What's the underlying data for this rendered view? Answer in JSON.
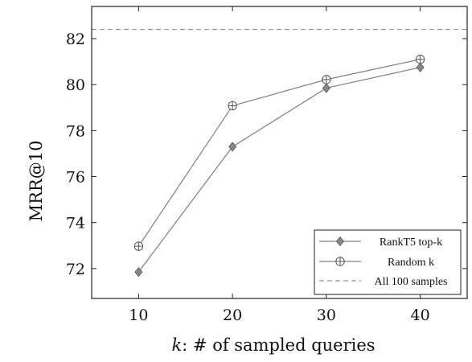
{
  "chart_data": {
    "type": "line",
    "xlabel_var": "k",
    "xlabel_rest": ": # of sampled queries",
    "ylabel": "MRR@10",
    "x": [
      10,
      20,
      30,
      40
    ],
    "xlim": [
      5,
      45
    ],
    "ylim": [
      70.7,
      83.4
    ],
    "xticks": [
      10,
      20,
      30,
      40
    ],
    "yticks": [
      72,
      74,
      76,
      78,
      80,
      82
    ],
    "grid": false,
    "legend_position": "bottom-right",
    "series": [
      {
        "name": "RankT5 top-k",
        "values": [
          71.85,
          77.3,
          79.85,
          80.75
        ],
        "marker": "diamond",
        "color": "#808080"
      },
      {
        "name": "Random k",
        "values": [
          72.97,
          79.08,
          80.22,
          81.1
        ],
        "marker": "circle-plus",
        "color": "#808080"
      }
    ],
    "reference_line": {
      "name": "All 100 samples",
      "value": 82.4,
      "style": "dashed",
      "color": "#909090"
    }
  }
}
